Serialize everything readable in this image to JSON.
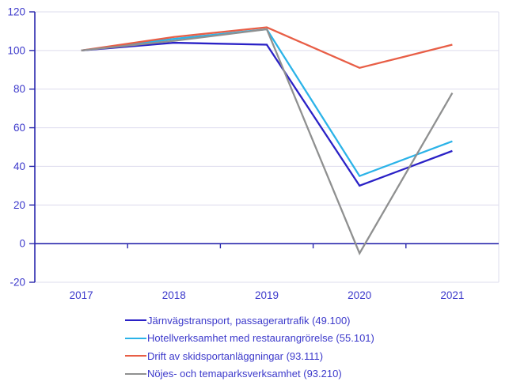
{
  "chart_data": {
    "type": "line",
    "title": "",
    "xlabel": "",
    "ylabel": "",
    "categories": [
      "2017",
      "2018",
      "2019",
      "2020",
      "2021"
    ],
    "series": [
      {
        "name": "Järnvägstransport, passagerartrafik (49.100)",
        "color": "#2a21c6",
        "values": [
          100,
          104,
          103,
          30,
          48
        ]
      },
      {
        "name": "Hotellverksamhet med restaurangrörelse (55.101)",
        "color": "#2bb3e8",
        "values": [
          100,
          106,
          111,
          35,
          53
        ]
      },
      {
        "name": "Drift av skidsportanläggningar (93.111)",
        "color": "#e85e46",
        "values": [
          100,
          107,
          112,
          91,
          103
        ]
      },
      {
        "name": "Nöjes- och temaparksverksamhet (93.210)",
        "color": "#8f9090",
        "values": [
          100,
          105,
          111,
          -5,
          78
        ]
      }
    ],
    "ylim": [
      -20,
      120
    ],
    "ytick_step": 20,
    "yticks": [
      -20,
      0,
      20,
      40,
      60,
      80,
      100,
      120
    ],
    "grid": true,
    "legend_position": "bottom",
    "axis_color": "#2a28ad",
    "grid_color": "#dddcee",
    "label_color": "#3c39cb"
  }
}
